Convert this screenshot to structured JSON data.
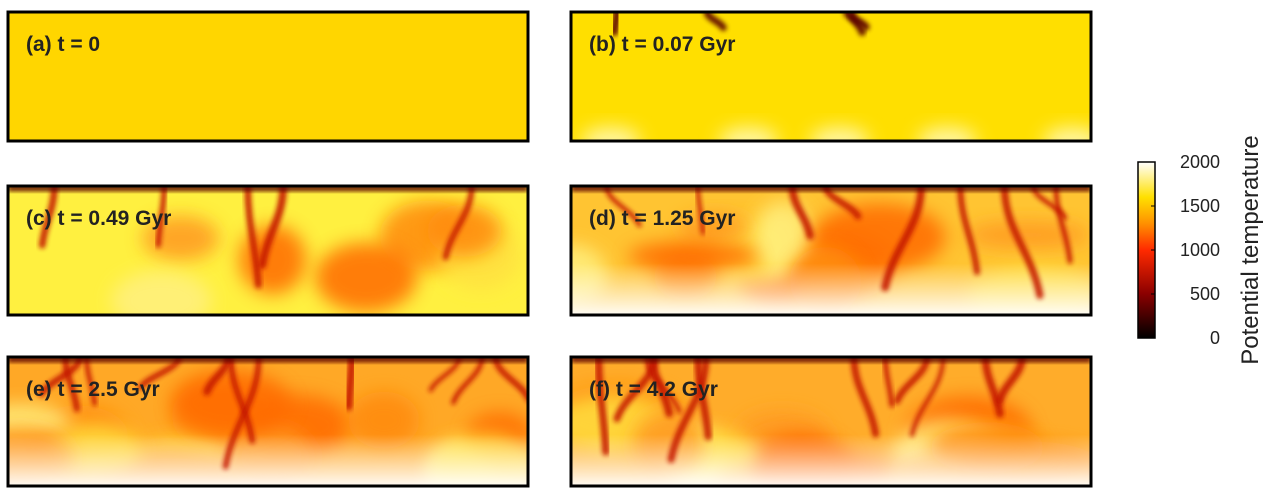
{
  "panels": [
    {
      "label": "(a) t = 0"
    },
    {
      "label": "(b) t = 0.07 Gyr"
    },
    {
      "label": "(c) t = 0.49 Gyr"
    },
    {
      "label": "(d) t = 1.25 Gyr"
    },
    {
      "label": "(e) t = 2.5 Gyr"
    },
    {
      "label": "(f) t = 4.2 Gyr"
    }
  ],
  "colorbar": {
    "label": "Potential temperature",
    "lim": [
      0,
      2000
    ],
    "ticks": [
      0,
      500,
      1000,
      1500,
      2000
    ]
  }
}
